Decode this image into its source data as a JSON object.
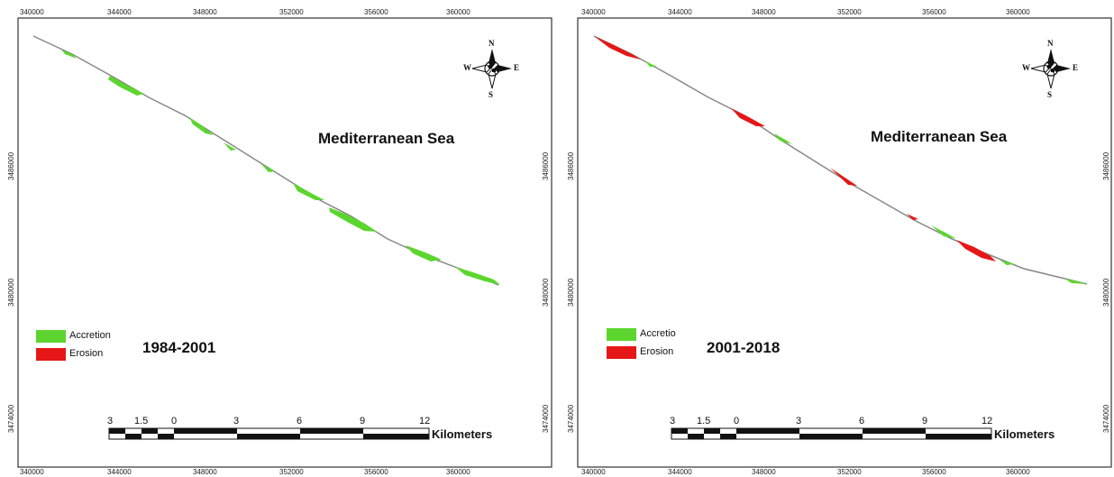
{
  "colors": {
    "accretion": "#5cd62e",
    "erosion": "#e61717",
    "shoreline": "#888888",
    "frame": "#333333"
  },
  "axes": {
    "x_ticks": [
      "340000",
      "344000",
      "348000",
      "352000",
      "356000",
      "360000"
    ],
    "y_ticks": [
      "3486000",
      "3480000",
      "3474000"
    ]
  },
  "compass": {
    "n": "N",
    "s": "S",
    "e": "E",
    "w": "W",
    "icon": "compass-rose-icon"
  },
  "scale_bar": {
    "labels": [
      "3",
      "1.5",
      "0",
      "3",
      "6",
      "9",
      "12"
    ],
    "unit": "Kilometers"
  },
  "panels": [
    {
      "sea_label": "Mediterranean Sea",
      "period": "1984-2001",
      "legend": [
        {
          "label": "Accretion",
          "color": "#5cd62e"
        },
        {
          "label": "Erosion",
          "color": "#e61717"
        }
      ]
    },
    {
      "sea_label": "Mediterranean Sea",
      "period": "2001-2018",
      "legend": [
        {
          "label": "Accretio",
          "color": "#5cd62e"
        },
        {
          "label": "Erosion",
          "color": "#e61717"
        }
      ]
    }
  ]
}
